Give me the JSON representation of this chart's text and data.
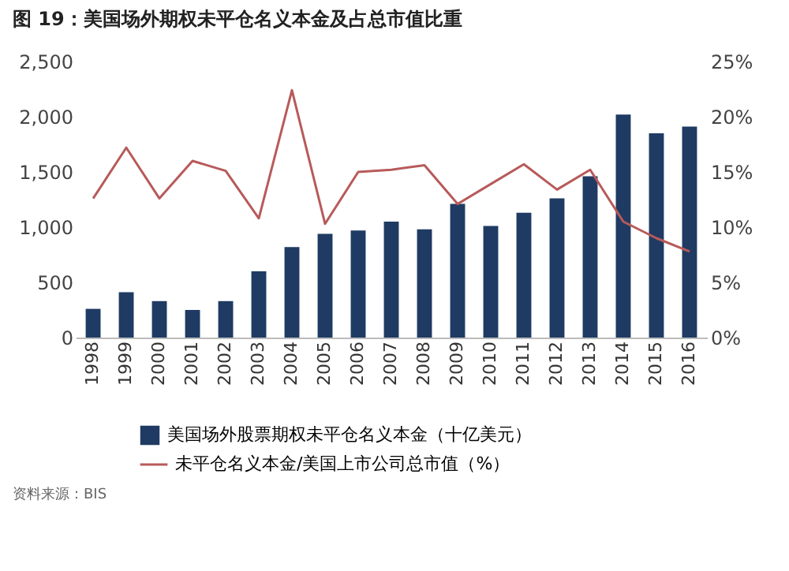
{
  "chart_data": {
    "type": "bar",
    "title": "图 19：美国场外期权未平仓名义本金及占总市值比重",
    "categories": [
      "1998",
      "1999",
      "2000",
      "2001",
      "2002",
      "2003",
      "2004",
      "2005",
      "2006",
      "2007",
      "2008",
      "2009",
      "2010",
      "2011",
      "2012",
      "2013",
      "2014",
      "2015",
      "2016"
    ],
    "series": [
      {
        "name": "美国场外股票期权未平仓名义本金（十亿美元）",
        "color": "#1f3b63",
        "values": [
          260,
          410,
          330,
          250,
          330,
          600,
          820,
          940,
          970,
          1050,
          980,
          1210,
          1010,
          1130,
          1260,
          1460,
          2020,
          1850,
          1910
        ]
      },
      {
        "name": "未平仓名义本金/美国上市公司总市值（%）",
        "type": "line",
        "axis": "y2",
        "color": "#b85a5a",
        "values": [
          12.6,
          17.2,
          12.6,
          16.0,
          15.1,
          10.8,
          22.4,
          10.3,
          15.0,
          15.2,
          15.6,
          12.1,
          13.9,
          15.7,
          13.4,
          15.2,
          10.5,
          9.0,
          7.8
        ]
      }
    ],
    "ylim": [
      0,
      2500
    ],
    "yticks": [
      {
        "value": 0,
        "label": "0"
      },
      {
        "value": 500,
        "label": "500"
      },
      {
        "value": 1000,
        "label": "1,000"
      },
      {
        "value": 1500,
        "label": "1,500"
      },
      {
        "value": 2000,
        "label": "2,000"
      },
      {
        "value": 2500,
        "label": "2,500"
      }
    ],
    "y2lim": [
      0,
      25
    ],
    "y2ticks": [
      {
        "value": 0,
        "label": "0%"
      },
      {
        "value": 5,
        "label": "5%"
      },
      {
        "value": 10,
        "label": "10%"
      },
      {
        "value": 15,
        "label": "15%"
      },
      {
        "value": 20,
        "label": "20%"
      },
      {
        "value": 25,
        "label": "25%"
      }
    ],
    "grid": false,
    "legend": "bottom",
    "marker": "none",
    "line_style": "solid",
    "annotations": [
      "资料来源：BIS"
    ]
  }
}
